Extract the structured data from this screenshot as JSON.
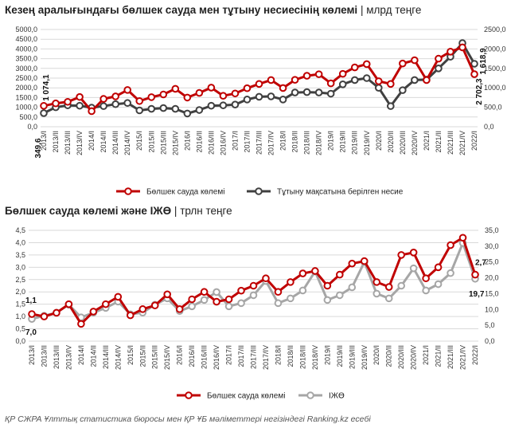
{
  "header": {
    "title1": "Кезең аралығындағы бөлшек сауда мен тұтыну несиесінің көлемі",
    "title1_unit": "млрд теңге",
    "title2": "Бөлшек сауда көлемі және ІЖӨ",
    "title2_unit": "трлн теңге",
    "title_sep": "|"
  },
  "footer": "ҚР СЖРА Ұлттық статистика бюросы мен ҚР ҰБ мәліметтері негізіндегі Ranking.kz есебі",
  "colors": {
    "red": "#c00000",
    "dark": "#404040",
    "gray": "#a6a6a6",
    "grid": "#d9d9d9"
  },
  "chart_data": [
    {
      "type": "line",
      "categories": [
        "2013/I",
        "2013/II",
        "2013/III",
        "2013/IV",
        "2014/I",
        "2014/II",
        "2014/III",
        "2014/IV",
        "2015/I",
        "2015/II",
        "2015/III",
        "2015/IV",
        "2016/I",
        "2016/II",
        "2016/III",
        "2016/IV",
        "2017/I",
        "2017/II",
        "2017/III",
        "2017/IV",
        "2018/I",
        "2018/II",
        "2018/III",
        "2018/IV",
        "2019/I",
        "2019/II",
        "2019/III",
        "2019/IV",
        "2020/I",
        "2020/II",
        "2020/III",
        "2020/IV",
        "2021/I",
        "2021/II",
        "2021/III",
        "2021/IV",
        "2022/I"
      ],
      "y_left_ticks": [
        "0,0",
        "500,0",
        "1000,0",
        "1500,0",
        "2000,0",
        "2500,0",
        "3000,0",
        "3500,0",
        "4000,0",
        "4500,0",
        "5000,0"
      ],
      "y_right_ticks": [
        "0,0",
        "500,0",
        "1000,0",
        "1500,0",
        "2000,0",
        "2500,0"
      ],
      "ylim_left": [
        0,
        5000
      ],
      "ylim_right": [
        0,
        2500
      ],
      "series": [
        {
          "name": "Бөлшек сауда көлемі",
          "axis": "left",
          "color": "#c00000",
          "values": [
            1074.1,
            1200,
            1280,
            1530,
            800,
            1430,
            1560,
            1890,
            1320,
            1520,
            1660,
            1950,
            1500,
            1740,
            2010,
            1590,
            1710,
            1980,
            2200,
            2400,
            1990,
            2410,
            2620,
            2700,
            2230,
            2720,
            3050,
            3220,
            2340,
            2200,
            3250,
            3420,
            2400,
            3500,
            3860,
            4080,
            2702.3
          ]
        },
        {
          "name": "Тұтыну мақсатына берілген несие",
          "axis": "right",
          "color": "#404040",
          "values": [
            349.6,
            500,
            550,
            540,
            490,
            530,
            580,
            610,
            420,
            460,
            480,
            460,
            340,
            430,
            540,
            550,
            570,
            700,
            770,
            780,
            700,
            880,
            890,
            880,
            850,
            1090,
            1200,
            1250,
            1000,
            530,
            940,
            1200,
            1210,
            1500,
            1800,
            2150,
            1618.9
          ]
        }
      ],
      "annotations": [
        {
          "text": "1 074,1",
          "series": 0,
          "index": 0
        },
        {
          "text": "349,6",
          "series": 1,
          "index": 0
        },
        {
          "text": "2 702,3",
          "series": 0,
          "index": 36
        },
        {
          "text": "1 618,9",
          "series": 1,
          "index": 36
        }
      ],
      "legend": "bottom",
      "grid": true
    },
    {
      "type": "line",
      "categories": [
        "2013/I",
        "2013/II",
        "2013/III",
        "2013/IV",
        "2014/I",
        "2014/II",
        "2014/III",
        "2014/IV",
        "2015/I",
        "2015/II",
        "2015/III",
        "2015/IV",
        "2016/I",
        "2016/II",
        "2016/III",
        "2016/IV",
        "2017/I",
        "2017/II",
        "2017/III",
        "2017/IV",
        "2018/I",
        "2018/II",
        "2018/III",
        "2018/IV",
        "2019/I",
        "2019/II",
        "2019/III",
        "2019/IV",
        "2020/I",
        "2020/II",
        "2020/III",
        "2020/IV",
        "2021/I",
        "2021/II",
        "2021/III",
        "2021/IV",
        "2022/I"
      ],
      "y_left_ticks": [
        "0,0",
        "0,5",
        "1,0",
        "1,5",
        "2,0",
        "2,5",
        "3,0",
        "3,5",
        "4,0",
        "4,5"
      ],
      "y_right_ticks": [
        "0,0",
        "5,0",
        "10,0",
        "15,0",
        "20,0",
        "25,0",
        "30,0",
        "35,0"
      ],
      "ylim_left": [
        0,
        4.5
      ],
      "ylim_right": [
        0,
        35
      ],
      "series": [
        {
          "name": "Бөлшек сауда көлемі",
          "axis": "left",
          "color": "#c00000",
          "values": [
            1.1,
            1.0,
            1.15,
            1.5,
            0.7,
            1.2,
            1.5,
            1.8,
            1.05,
            1.3,
            1.45,
            1.9,
            1.3,
            1.7,
            2.0,
            1.6,
            1.7,
            2.05,
            2.25,
            2.55,
            2.0,
            2.4,
            2.75,
            2.85,
            2.25,
            2.7,
            3.15,
            3.25,
            2.4,
            2.2,
            3.5,
            3.6,
            2.55,
            3.0,
            3.9,
            4.2,
            2.7
          ]
        },
        {
          "name": "ІЖӨ",
          "axis": "right",
          "color": "#a6a6a6",
          "values": [
            7.0,
            8.0,
            9.0,
            11.5,
            7.5,
            9.0,
            10.5,
            12.5,
            8.5,
            9.0,
            11.5,
            13.5,
            9.5,
            11.0,
            13.0,
            15.5,
            11.0,
            12.0,
            14.5,
            19.0,
            12.0,
            13.5,
            16.0,
            22.0,
            13.0,
            14.5,
            17.0,
            25.0,
            15.0,
            13.5,
            17.5,
            23.0,
            16.0,
            18.0,
            21.5,
            31.0,
            19.7
          ]
        }
      ],
      "annotations": [
        {
          "text": "1,1",
          "series": 0,
          "index": 0
        },
        {
          "text": "7,0",
          "series": 1,
          "index": 0
        },
        {
          "text": "2,7",
          "series": 0,
          "index": 36
        },
        {
          "text": "19,7",
          "series": 1,
          "index": 36
        }
      ],
      "legend": "bottom",
      "grid": true
    }
  ]
}
